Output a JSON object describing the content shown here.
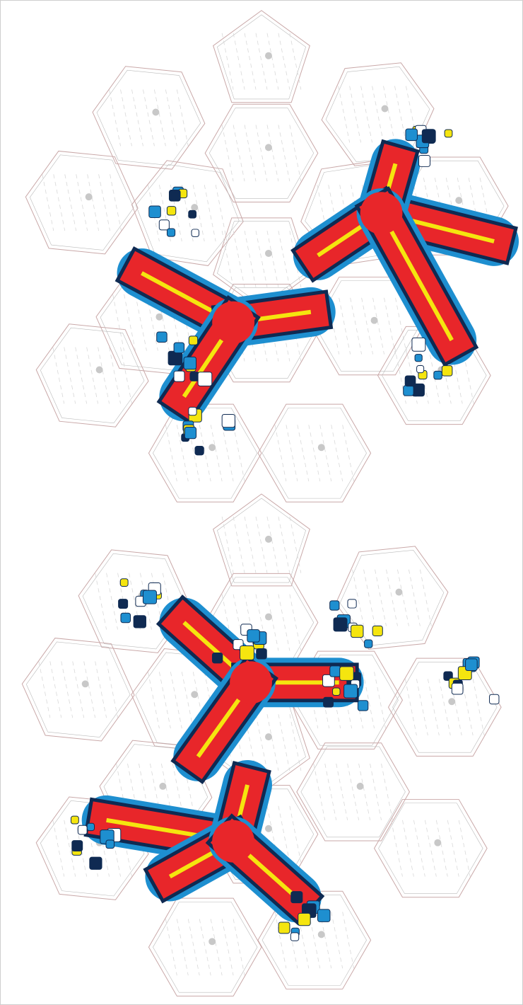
{
  "artwork": {
    "kind": "soccer-ball-panel-template",
    "colors": {
      "red": "#e8262a",
      "navy": "#0f2a52",
      "blue": "#1e8fd0",
      "yellow": "#f5e50f",
      "panel_outline": "#c9a8a8",
      "grey_dot": "#c8c8c8"
    },
    "icons": [
      "hexagon-panel",
      "pentagon-panel",
      "tri-arm-graphic",
      "square-confetti",
      "circle-dot"
    ]
  }
}
